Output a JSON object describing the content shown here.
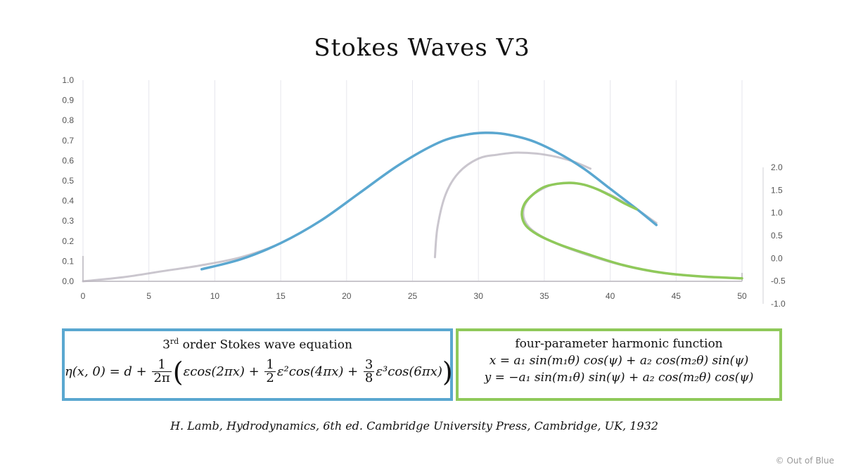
{
  "chart_data": {
    "type": "line",
    "title": "Stokes Waves V3",
    "x_axis": {
      "range": [
        0,
        50
      ],
      "ticks": [
        "0",
        "5",
        "10",
        "15",
        "20",
        "25",
        "30",
        "35",
        "40",
        "45",
        "50"
      ]
    },
    "y_axis_left": {
      "range": [
        0,
        1
      ],
      "ticks": [
        "0.0",
        "0.1",
        "0.2",
        "0.3",
        "0.4",
        "0.5",
        "0.6",
        "0.7",
        "0.8",
        "0.9",
        "1.0"
      ]
    },
    "y_axis_right": {
      "range": [
        -1,
        2
      ],
      "ticks": [
        "-1.0",
        "-0.5",
        "0.0",
        "0.5",
        "1.0",
        "1.5",
        "2.0"
      ]
    },
    "grid": "vertical",
    "series": [
      {
        "color": "#5aa7d0",
        "axis": "left",
        "x": [
          9,
          12,
          15,
          18,
          21,
          24,
          27,
          29,
          30.5,
          32,
          34,
          36,
          38,
          40,
          42,
          43.5
        ],
        "y": [
          0.06,
          0.11,
          0.19,
          0.3,
          0.44,
          0.58,
          0.69,
          0.728,
          0.738,
          0.732,
          0.7,
          0.64,
          0.56,
          0.46,
          0.36,
          0.28
        ]
      },
      {
        "color": "#8fc95a",
        "axis": "right",
        "x": [
          42,
          41,
          40,
          39,
          38,
          37,
          36,
          35,
          34.2,
          33.5,
          33.3,
          33.6,
          34.5,
          36,
          38,
          41,
          44,
          47,
          50
        ],
        "y": [
          1.08,
          1.22,
          1.38,
          1.52,
          1.62,
          1.66,
          1.64,
          1.57,
          1.42,
          1.2,
          0.95,
          0.72,
          0.52,
          0.32,
          0.12,
          -0.15,
          -0.32,
          -0.4,
          -0.44
        ]
      },
      {
        "color": "#b8b3bd",
        "axis": "left",
        "x": [
          26.7,
          26.9,
          27.5,
          28.5,
          30,
          31.5,
          33,
          35,
          37,
          38.5
        ],
        "y": [
          0.12,
          0.27,
          0.43,
          0.54,
          0.61,
          0.63,
          0.64,
          0.63,
          0.6,
          0.56
        ]
      },
      {
        "color": "#b8b3bd",
        "axis": "left",
        "x": [
          0,
          3,
          6,
          9,
          12,
          15,
          18,
          21,
          24,
          27,
          29,
          30.5,
          32,
          34,
          36,
          38,
          40,
          42,
          43.5
        ],
        "y": [
          0.0,
          0.02,
          0.05,
          0.08,
          0.12,
          0.19,
          0.3,
          0.44,
          0.58,
          0.69,
          0.728,
          0.74,
          0.732,
          0.7,
          0.64,
          0.56,
          0.46,
          0.36,
          0.29
        ]
      },
      {
        "color": "#b8b3bd",
        "axis": "right",
        "x": [
          41.5,
          40,
          38,
          36,
          34.8,
          33.8,
          33.4,
          33.8,
          35,
          37,
          40,
          43,
          46,
          50
        ],
        "y": [
          1.15,
          1.4,
          1.62,
          1.64,
          1.52,
          1.3,
          1.0,
          0.7,
          0.45,
          0.2,
          -0.08,
          -0.28,
          -0.38,
          -0.44
        ]
      }
    ]
  },
  "equations": {
    "stokes": {
      "title": "3",
      "title_sup": "rd",
      "title_rest": " order Stokes wave equation",
      "lhs": "η(x, 0) = d + ",
      "f1_num": "1",
      "f1_den": "2π",
      "term1": "εcos(2πx) + ",
      "f2_num": "1",
      "f2_den": "2",
      "term2": "ε²cos(4πx) + ",
      "f3_num": "3",
      "f3_den": "8",
      "term3": "ε³cos(6πx)"
    },
    "harmonic": {
      "title": "four-parameter harmonic function",
      "line_x": "x = a₁ sin(m₁θ) cos(ψ) + a₂ cos(m₂θ) sin(ψ)",
      "line_y": "y = −a₁ sin(m₁θ) sin(ψ) + a₂ cos(m₂θ) cos(ψ)"
    }
  },
  "citation": "H. Lamb, Hydrodynamics, 6th ed. Cambridge University Press, Cambridge, UK, 1932",
  "copyright": "© Out of Blue"
}
